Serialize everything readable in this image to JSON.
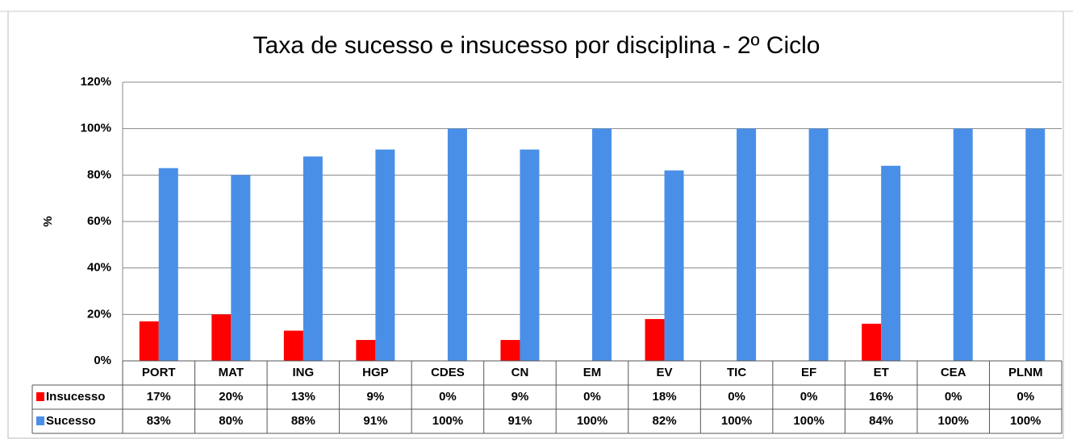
{
  "chart_data": {
    "type": "bar",
    "title": "Taxa de sucesso e insucesso por disciplina   - 2º Ciclo",
    "y_label": "%",
    "categories": [
      "PORT",
      "MAT",
      "ING",
      "HGP",
      "CDES",
      "CN",
      "EM",
      "EV",
      "TIC",
      "EF",
      "ET",
      "CEA",
      "PLNM"
    ],
    "series": [
      {
        "name": "Insucesso",
        "color": "#ff0000",
        "values": [
          17,
          20,
          13,
          9,
          0,
          9,
          0,
          18,
          0,
          0,
          16,
          0,
          0
        ],
        "value_labels": [
          "17%",
          "20%",
          "13%",
          "9%",
          "0%",
          "9%",
          "0%",
          "18%",
          "0%",
          "0%",
          "16%",
          "0%",
          "0%"
        ]
      },
      {
        "name": "Sucesso",
        "color": "#4a8fe7",
        "values": [
          83,
          80,
          88,
          91,
          100,
          91,
          100,
          82,
          100,
          100,
          84,
          100,
          100
        ],
        "value_labels": [
          "83%",
          "80%",
          "88%",
          "91%",
          "100%",
          "91%",
          "100%",
          "82%",
          "100%",
          "100%",
          "84%",
          "100%",
          "100%"
        ]
      }
    ],
    "ylim": [
      0,
      120
    ],
    "yticks": [
      {
        "value": 0,
        "label": "0%"
      },
      {
        "value": 20,
        "label": "20%"
      },
      {
        "value": 40,
        "label": "40%"
      },
      {
        "value": 60,
        "label": "60%"
      },
      {
        "value": 80,
        "label": "80%"
      },
      {
        "value": 100,
        "label": "100%"
      },
      {
        "value": 120,
        "label": "120%"
      }
    ],
    "grid": true
  }
}
